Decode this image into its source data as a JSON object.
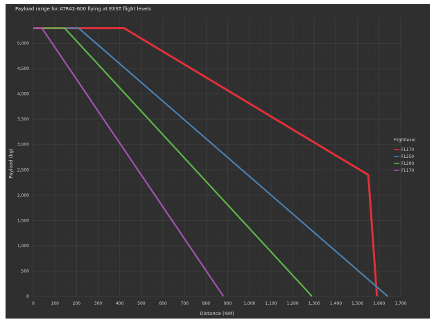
{
  "chart_data": {
    "type": "line",
    "title": "Payload range for ATR42-600 flying at EXST flight levels",
    "xlabel": "Distance (NM)",
    "ylabel": "Payload (kg)",
    "xlim": [
      0,
      1700
    ],
    "ylim": [
      0,
      5500
    ],
    "x_ticks": [
      0,
      100,
      200,
      300,
      400,
      500,
      600,
      700,
      800,
      900,
      1000,
      1100,
      1200,
      1300,
      1400,
      1500,
      1600,
      1700
    ],
    "x_tick_labels": [
      "0",
      "100",
      "200",
      "300",
      "400",
      "500",
      "600",
      "700",
      "800",
      "900",
      "1,000",
      "1,100",
      "1,200",
      "1,300",
      "1,400",
      "1,500",
      "1,600",
      "1,700"
    ],
    "y_ticks": [
      0,
      500,
      1000,
      1500,
      2000,
      2500,
      3000,
      3500,
      4000,
      4500,
      5000
    ],
    "y_tick_labels": [
      "0",
      "500",
      "1,000",
      "1,500",
      "2,000",
      "2,500",
      "3,000",
      "3,500",
      "4,000",
      "4,500",
      "5,000"
    ],
    "grid": true,
    "legend_title": "Flightlevel",
    "legend_position": "right",
    "series": [
      {
        "name": "FL170",
        "color": "#e0303a",
        "x": [
          0,
          420,
          1550,
          1590
        ],
        "y": [
          5300,
          5300,
          2400,
          0
        ]
      },
      {
        "name": "FL250",
        "color": "#4a7fb0",
        "x": [
          0,
          210,
          1640
        ],
        "y": [
          5300,
          5300,
          0
        ]
      },
      {
        "name": "FL200",
        "color": "#5fb64a",
        "x": [
          0,
          145,
          1290
        ],
        "y": [
          5300,
          5300,
          0
        ]
      },
      {
        "name": "FL170",
        "color": "#a054b0",
        "x": [
          0,
          40,
          880
        ],
        "y": [
          5300,
          5300,
          0
        ]
      }
    ]
  }
}
